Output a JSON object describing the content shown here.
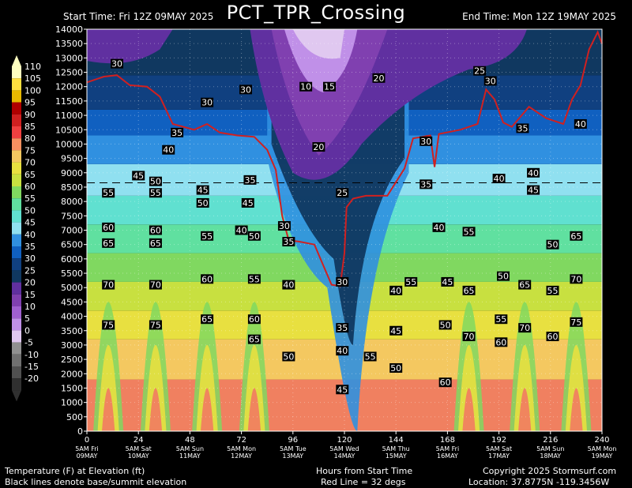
{
  "header": {
    "title": "PCT_TPR_Crossing",
    "start_time": "Start Time: Fri 12Z 09MAY 2025",
    "end_time": "End Time: Mon 12Z 19MAY 2025"
  },
  "footer": {
    "left_line1": "Temperature (F) at Elevation (ft)",
    "left_line2": "Black lines denote base/summit elevation",
    "center_line1": "Hours from Start Time",
    "center_line2": "Red Line = 32 degs",
    "right_line1": "Copyright 2025 Stormsurf.com",
    "right_line2": "Location: 37.8775N  -119.3456W"
  },
  "colorbar": {
    "labels": [
      "110",
      "105",
      "100",
      "95",
      "90",
      "85",
      "80",
      "75",
      "70",
      "65",
      "60",
      "55",
      "50",
      "45",
      "40",
      "35",
      "30",
      "25",
      "20",
      "15",
      "10",
      "5",
      "0",
      "-5",
      "-10",
      "-15",
      "-20"
    ],
    "colors": [
      "#ffffc0",
      "#ffe040",
      "#e8b800",
      "#b00000",
      "#d02020",
      "#f04040",
      "#f89060",
      "#f4c860",
      "#e8e040",
      "#c8e040",
      "#80d860",
      "#60e0a0",
      "#60e0d0",
      "#90e0f0",
      "#3090e0",
      "#1060c0",
      "#104080",
      "#103860",
      "#6030a0",
      "#8040b0",
      "#a060d0",
      "#c090e8",
      "#e0c8f0",
      "#909090",
      "#707070",
      "#505050",
      "#303030"
    ]
  },
  "chart_data": {
    "type": "heatmap",
    "title": "PCT_TPR_Crossing",
    "xlabel": "Hours from Start Time",
    "ylabel": "Temperature (F) at Elevation (ft)",
    "xlim": [
      0,
      240
    ],
    "ylim": [
      0,
      14000
    ],
    "x_ticks": [
      0,
      24,
      48,
      72,
      96,
      120,
      144,
      168,
      192,
      216,
      240
    ],
    "y_ticks": [
      0,
      500,
      1000,
      1500,
      2000,
      2500,
      3000,
      3500,
      4000,
      4500,
      5000,
      5500,
      6000,
      6500,
      7000,
      7500,
      8000,
      8500,
      9000,
      9500,
      10000,
      10500,
      11000,
      11500,
      12000,
      12500,
      13000,
      13500,
      14000
    ],
    "day_labels": [
      {
        "hour": 0,
        "line1": "5AM Fri",
        "line2": "09MAY"
      },
      {
        "hour": 24,
        "line1": "5AM Sat",
        "line2": "10MAY"
      },
      {
        "hour": 48,
        "line1": "5AM Sun",
        "line2": "11MAY"
      },
      {
        "hour": 72,
        "line1": "5AM Mon",
        "line2": "12MAY"
      },
      {
        "hour": 96,
        "line1": "5AM Tue",
        "line2": "13MAY"
      },
      {
        "hour": 120,
        "line1": "5AM Wed",
        "line2": "14MAY"
      },
      {
        "hour": 144,
        "line1": "5AM Thu",
        "line2": "15MAY"
      },
      {
        "hour": 168,
        "line1": "5AM Fri",
        "line2": "16MAY"
      },
      {
        "hour": 192,
        "line1": "5AM Sat",
        "line2": "17MAY"
      },
      {
        "hour": 216,
        "line1": "5AM Sun",
        "line2": "18MAY"
      },
      {
        "hour": 240,
        "line1": "5AM Mon",
        "line2": "19MAY"
      }
    ],
    "reference_elevation_ft": 8650,
    "freezing_line_32F": [
      [
        0,
        12150
      ],
      [
        8,
        12350
      ],
      [
        14,
        12400
      ],
      [
        20,
        12050
      ],
      [
        28,
        12000
      ],
      [
        34,
        11650
      ],
      [
        40,
        10700
      ],
      [
        50,
        10500
      ],
      [
        56,
        10700
      ],
      [
        62,
        10400
      ],
      [
        70,
        10300
      ],
      [
        78,
        10250
      ],
      [
        84,
        9800
      ],
      [
        88,
        9100
      ],
      [
        91,
        7500
      ],
      [
        94,
        6650
      ],
      [
        99,
        6600
      ],
      [
        106,
        6500
      ],
      [
        110,
        5800
      ],
      [
        114,
        5100
      ],
      [
        118,
        5050
      ],
      [
        120,
        6200
      ],
      [
        121,
        7800
      ],
      [
        124,
        8100
      ],
      [
        130,
        8200
      ],
      [
        140,
        8200
      ],
      [
        148,
        9150
      ],
      [
        152,
        10200
      ],
      [
        160,
        10300
      ],
      [
        162,
        9200
      ],
      [
        164,
        10350
      ],
      [
        174,
        10500
      ],
      [
        182,
        10700
      ],
      [
        186,
        11900
      ],
      [
        190,
        11550
      ],
      [
        194,
        10750
      ],
      [
        198,
        10600
      ],
      [
        206,
        11300
      ],
      [
        214,
        10900
      ],
      [
        222,
        10700
      ],
      [
        226,
        11550
      ],
      [
        230,
        12050
      ],
      [
        234,
        13300
      ],
      [
        238,
        13900
      ],
      [
        240,
        13500
      ]
    ],
    "contour_labels": [
      {
        "hour": 14,
        "ft": 12800,
        "v": "30"
      },
      {
        "hour": 56,
        "ft": 11450,
        "v": "30"
      },
      {
        "hour": 74,
        "ft": 11900,
        "v": "30"
      },
      {
        "hour": 42,
        "ft": 10400,
        "v": "35"
      },
      {
        "hour": 38,
        "ft": 9800,
        "v": "40"
      },
      {
        "hour": 24,
        "ft": 8900,
        "v": "45"
      },
      {
        "hour": 32,
        "ft": 8700,
        "v": "50"
      },
      {
        "hour": 76,
        "ft": 8750,
        "v": "35"
      },
      {
        "hour": 10,
        "ft": 8300,
        "v": "55"
      },
      {
        "hour": 32,
        "ft": 8300,
        "v": "55"
      },
      {
        "hour": 54,
        "ft": 8400,
        "v": "45"
      },
      {
        "hour": 54,
        "ft": 7950,
        "v": "50"
      },
      {
        "hour": 75,
        "ft": 7950,
        "v": "45"
      },
      {
        "hour": 10,
        "ft": 7100,
        "v": "60"
      },
      {
        "hour": 10,
        "ft": 6550,
        "v": "65"
      },
      {
        "hour": 32,
        "ft": 7000,
        "v": "60"
      },
      {
        "hour": 32,
        "ft": 6550,
        "v": "65"
      },
      {
        "hour": 56,
        "ft": 6800,
        "v": "55"
      },
      {
        "hour": 72,
        "ft": 7000,
        "v": "40"
      },
      {
        "hour": 78,
        "ft": 6800,
        "v": "50"
      },
      {
        "hour": 92,
        "ft": 7150,
        "v": "30"
      },
      {
        "hour": 94,
        "ft": 6600,
        "v": "35"
      },
      {
        "hour": 10,
        "ft": 5100,
        "v": "70"
      },
      {
        "hour": 32,
        "ft": 5100,
        "v": "70"
      },
      {
        "hour": 56,
        "ft": 5300,
        "v": "60"
      },
      {
        "hour": 78,
        "ft": 5300,
        "v": "55"
      },
      {
        "hour": 94,
        "ft": 5100,
        "v": "40"
      },
      {
        "hour": 10,
        "ft": 3700,
        "v": "75"
      },
      {
        "hour": 32,
        "ft": 3700,
        "v": "75"
      },
      {
        "hour": 56,
        "ft": 3900,
        "v": "65"
      },
      {
        "hour": 78,
        "ft": 3900,
        "v": "60"
      },
      {
        "hour": 78,
        "ft": 3200,
        "v": "65"
      },
      {
        "hour": 94,
        "ft": 2600,
        "v": "50"
      },
      {
        "hour": 102,
        "ft": 12000,
        "v": "10"
      },
      {
        "hour": 113,
        "ft": 12000,
        "v": "15"
      },
      {
        "hour": 136,
        "ft": 12300,
        "v": "20"
      },
      {
        "hour": 108,
        "ft": 9900,
        "v": "20"
      },
      {
        "hour": 119,
        "ft": 8300,
        "v": "25"
      },
      {
        "hour": 119,
        "ft": 5200,
        "v": "30"
      },
      {
        "hour": 119,
        "ft": 3600,
        "v": "35"
      },
      {
        "hour": 119,
        "ft": 2800,
        "v": "40"
      },
      {
        "hour": 119,
        "ft": 1450,
        "v": "45"
      },
      {
        "hour": 132,
        "ft": 2600,
        "v": "55"
      },
      {
        "hour": 144,
        "ft": 2200,
        "v": "50"
      },
      {
        "hour": 144,
        "ft": 3500,
        "v": "45"
      },
      {
        "hour": 144,
        "ft": 4900,
        "v": "40"
      },
      {
        "hour": 151,
        "ft": 5200,
        "v": "55"
      },
      {
        "hour": 158,
        "ft": 10100,
        "v": "30"
      },
      {
        "hour": 158,
        "ft": 8600,
        "v": "35"
      },
      {
        "hour": 164,
        "ft": 7100,
        "v": "40"
      },
      {
        "hour": 168,
        "ft": 5200,
        "v": "45"
      },
      {
        "hour": 167,
        "ft": 3700,
        "v": "50"
      },
      {
        "hour": 167,
        "ft": 1700,
        "v": "60"
      },
      {
        "hour": 178,
        "ft": 6950,
        "v": "55"
      },
      {
        "hour": 178,
        "ft": 4900,
        "v": "65"
      },
      {
        "hour": 178,
        "ft": 3300,
        "v": "70"
      },
      {
        "hour": 183,
        "ft": 12550,
        "v": "25"
      },
      {
        "hour": 188,
        "ft": 12200,
        "v": "30"
      },
      {
        "hour": 192,
        "ft": 8800,
        "v": "40"
      },
      {
        "hour": 194,
        "ft": 5400,
        "v": "50"
      },
      {
        "hour": 193,
        "ft": 3900,
        "v": "55"
      },
      {
        "hour": 193,
        "ft": 3100,
        "v": "60"
      },
      {
        "hour": 203,
        "ft": 10550,
        "v": "35"
      },
      {
        "hour": 208,
        "ft": 9000,
        "v": "40"
      },
      {
        "hour": 208,
        "ft": 8400,
        "v": "45"
      },
      {
        "hour": 204,
        "ft": 5100,
        "v": "65"
      },
      {
        "hour": 204,
        "ft": 3600,
        "v": "70"
      },
      {
        "hour": 217,
        "ft": 6500,
        "v": "50"
      },
      {
        "hour": 217,
        "ft": 4900,
        "v": "55"
      },
      {
        "hour": 217,
        "ft": 3300,
        "v": "60"
      },
      {
        "hour": 230,
        "ft": 10700,
        "v": "40"
      },
      {
        "hour": 228,
        "ft": 6800,
        "v": "65"
      },
      {
        "hour": 228,
        "ft": 5300,
        "v": "70"
      },
      {
        "hour": 228,
        "ft": 3800,
        "v": "75"
      }
    ]
  }
}
